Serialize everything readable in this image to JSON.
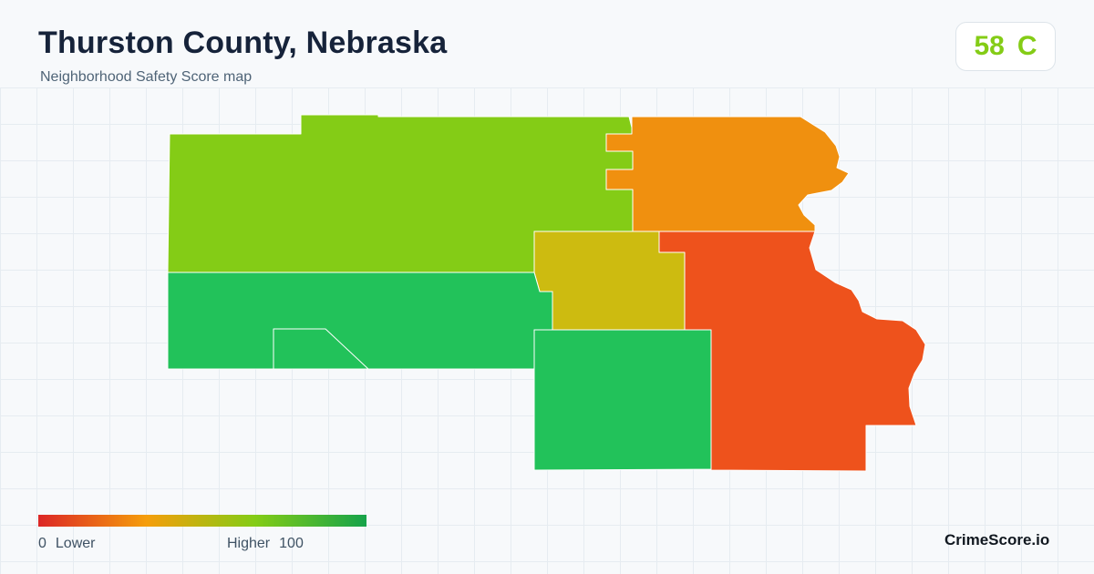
{
  "header": {
    "title": "Thurston County, Nebraska",
    "subtitle": "Neighborhood Safety Score map"
  },
  "score": {
    "value": "58",
    "grade": "C",
    "color": "#84cc16"
  },
  "map": {
    "regions": [
      {
        "id": "northwest",
        "color": "#84cc16",
        "score_band": "higher"
      },
      {
        "id": "northeast",
        "color": "#f0900f",
        "score_band": "lower"
      },
      {
        "id": "central",
        "color": "#cdbb10",
        "score_band": "middle"
      },
      {
        "id": "southwest",
        "color": "#22c25a",
        "score_band": "highest"
      },
      {
        "id": "south-central",
        "color": "#22c25a",
        "score_band": "highest"
      },
      {
        "id": "southeast",
        "color": "#ee521c",
        "score_band": "lowest"
      }
    ]
  },
  "legend": {
    "low_value": "0",
    "low_label": "Lower",
    "high_label": "Higher",
    "high_value": "100",
    "gradient": [
      "#dc2626",
      "#f59e0b",
      "#84cc16",
      "#16a34a"
    ]
  },
  "brand": "CrimeScore.io"
}
